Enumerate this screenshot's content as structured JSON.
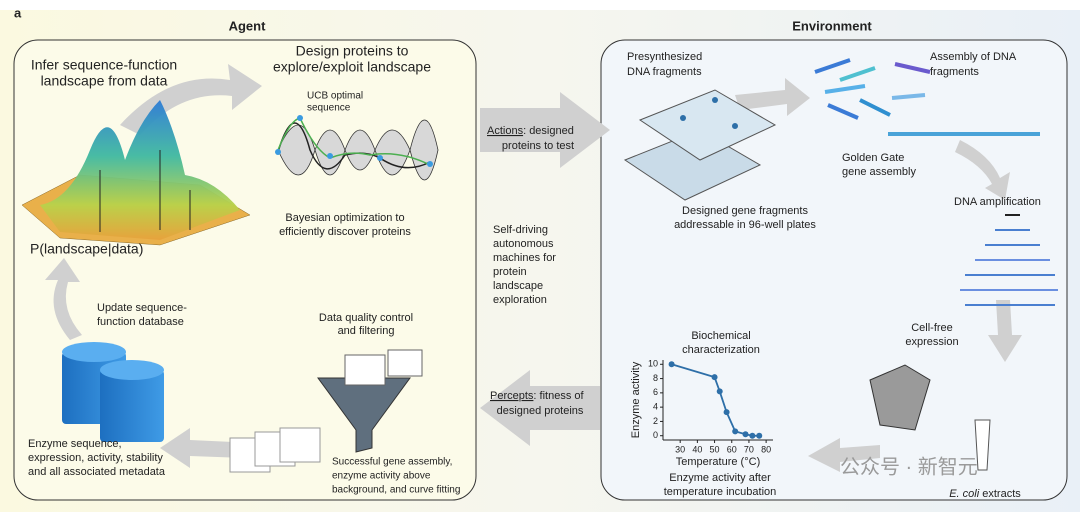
{
  "panel_label": "a",
  "agent": {
    "title": "Agent",
    "infer": [
      "Infer sequence-function",
      "landscape from data"
    ],
    "design": [
      "Design proteins to",
      "explore/exploit landscape"
    ],
    "ucb": [
      "UCB optimal",
      "sequence"
    ],
    "bayes": [
      "Bayesian optimization to",
      "efficiently discover proteins"
    ],
    "posterior": "P(landscape|data)",
    "update": [
      "Update sequence-",
      "function database"
    ],
    "quality": [
      "Data quality control",
      "and filtering"
    ],
    "database": [
      "Enzyme sequence,",
      "expression, activity, stability",
      "and all associated metadata"
    ],
    "success": [
      "Successful gene assembly,",
      "enzyme activity above",
      "background, and curve fitting"
    ]
  },
  "middle": {
    "actions": {
      "keyword": "Actions",
      "rest": [
        ": designed",
        "proteins to test"
      ]
    },
    "self_driving": [
      "Self-driving",
      "autonomous",
      "machines for",
      "protein",
      "landscape",
      "exploration"
    ],
    "percepts": {
      "keyword": "Percepts",
      "rest": [
        ": fitness of",
        "designed proteins"
      ]
    }
  },
  "environment": {
    "title": "Environment",
    "presynth": [
      "Presynthesized",
      "DNA fragments"
    ],
    "assembly": [
      "Assembly of DNA",
      "fragments"
    ],
    "golden": [
      "Golden Gate",
      "gene assembly"
    ],
    "amplification": "DNA amplification",
    "plates": [
      "Designed gene fragments",
      "addressable in 96-well plates"
    ],
    "cellfree": [
      "Cell-free",
      "expression"
    ],
    "biochem": [
      "Biochemical",
      "characterization"
    ],
    "after": [
      "Enzyme activity after",
      "temperature incubation"
    ],
    "extracts": {
      "species": "E. coli",
      "rest": " extracts"
    }
  },
  "enzyme_plot": {
    "x_label": "Temperature (°C)",
    "y_label": "Enzyme activity",
    "xlim": [
      20,
      84
    ],
    "ylim": [
      -0.6,
      10.6
    ],
    "xticks": [
      30,
      40,
      50,
      60,
      70,
      80
    ],
    "yticks": [
      0,
      2,
      4,
      6,
      8,
      10
    ],
    "x": [
      25,
      50,
      53,
      57,
      62,
      68,
      72,
      76
    ],
    "y": [
      10,
      8.2,
      6.2,
      3.3,
      0.6,
      0.2,
      0,
      0
    ],
    "color": "#2e6fa8"
  },
  "watermark": "公众号 · 新智元"
}
